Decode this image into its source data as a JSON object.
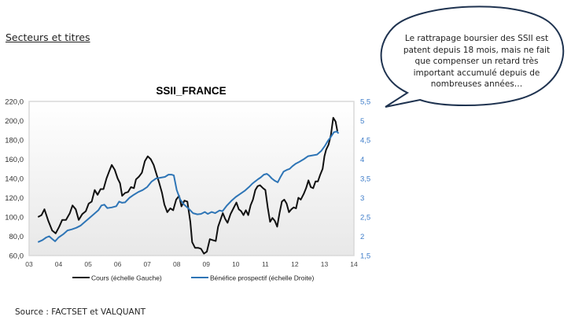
{
  "section_title": "Secteurs et titres",
  "source": "Source : FACTSET et VALQUANT",
  "callout": {
    "lines": [
      "Le rattrapage boursier des SSII est",
      "patent depuis 18 mois, mais ne fait",
      "que compenser un retard très",
      "important accumulé depuis de",
      "nombreuses années…"
    ]
  },
  "colors": {
    "cours": "#111111",
    "benefice": "#2e75b6",
    "right_axis_labels": "#3d7cc9"
  },
  "chart_data": {
    "type": "line",
    "title": "SSII_FRANCE",
    "xlabel": "",
    "ylabel": "",
    "x_ticks": [
      "03",
      "04",
      "05",
      "06",
      "07",
      "08",
      "09",
      "10",
      "11",
      "12",
      "13",
      "14"
    ],
    "x_range": [
      2003,
      2014
    ],
    "y_left": {
      "range": [
        60,
        220
      ],
      "ticks": [
        "60,0",
        "80,0",
        "100,0",
        "120,0",
        "140,0",
        "160,0",
        "180,0",
        "200,0",
        "220,0"
      ]
    },
    "y_right": {
      "range": [
        1.5,
        5.5
      ],
      "ticks": [
        "1,5",
        "2",
        "2,5",
        "3",
        "3,5",
        "4",
        "4,5",
        "5",
        "5,5"
      ]
    },
    "grid": false,
    "legend_position": "bottom",
    "series": [
      {
        "name": "Cours (échelle Gauche)",
        "axis": "left",
        "points": [
          [
            2003.3,
            100
          ],
          [
            2003.42,
            102
          ],
          [
            2003.52,
            108
          ],
          [
            2003.65,
            96
          ],
          [
            2003.78,
            86
          ],
          [
            2003.9,
            83
          ],
          [
            2004.02,
            90
          ],
          [
            2004.12,
            97
          ],
          [
            2004.25,
            97
          ],
          [
            2004.38,
            104
          ],
          [
            2004.47,
            112
          ],
          [
            2004.58,
            108
          ],
          [
            2004.68,
            97
          ],
          [
            2004.8,
            103
          ],
          [
            2004.92,
            106
          ],
          [
            2005.02,
            114
          ],
          [
            2005.12,
            116
          ],
          [
            2005.22,
            128
          ],
          [
            2005.32,
            123
          ],
          [
            2005.42,
            129
          ],
          [
            2005.52,
            129
          ],
          [
            2005.62,
            140
          ],
          [
            2005.72,
            148
          ],
          [
            2005.8,
            154
          ],
          [
            2005.9,
            149
          ],
          [
            2006.0,
            140
          ],
          [
            2006.08,
            135
          ],
          [
            2006.15,
            122
          ],
          [
            2006.25,
            125
          ],
          [
            2006.35,
            126
          ],
          [
            2006.45,
            131
          ],
          [
            2006.55,
            130
          ],
          [
            2006.62,
            139
          ],
          [
            2006.72,
            142
          ],
          [
            2006.82,
            146
          ],
          [
            2006.92,
            158
          ],
          [
            2007.02,
            163
          ],
          [
            2007.12,
            160
          ],
          [
            2007.22,
            154
          ],
          [
            2007.3,
            146
          ],
          [
            2007.4,
            136
          ],
          [
            2007.5,
            125
          ],
          [
            2007.58,
            113
          ],
          [
            2007.68,
            105
          ],
          [
            2007.78,
            109
          ],
          [
            2007.88,
            107
          ],
          [
            2007.98,
            118
          ],
          [
            2008.08,
            122
          ],
          [
            2008.16,
            111
          ],
          [
            2008.26,
            117
          ],
          [
            2008.36,
            116
          ],
          [
            2008.46,
            95
          ],
          [
            2008.52,
            74
          ],
          [
            2008.62,
            68
          ],
          [
            2008.72,
            68
          ],
          [
            2008.82,
            67
          ],
          [
            2008.92,
            62
          ],
          [
            2009.02,
            64
          ],
          [
            2009.12,
            77
          ],
          [
            2009.22,
            76
          ],
          [
            2009.32,
            75
          ],
          [
            2009.4,
            90
          ],
          [
            2009.48,
            97
          ],
          [
            2009.56,
            104
          ],
          [
            2009.64,
            98
          ],
          [
            2009.72,
            94
          ],
          [
            2009.82,
            103
          ],
          [
            2009.92,
            109
          ],
          [
            2010.02,
            115
          ],
          [
            2010.1,
            108
          ],
          [
            2010.18,
            106
          ],
          [
            2010.26,
            102
          ],
          [
            2010.34,
            107
          ],
          [
            2010.42,
            102
          ],
          [
            2010.5,
            112
          ],
          [
            2010.58,
            118
          ],
          [
            2010.66,
            128
          ],
          [
            2010.74,
            132
          ],
          [
            2010.82,
            133
          ],
          [
            2010.92,
            130
          ],
          [
            2011.0,
            128
          ],
          [
            2011.08,
            110
          ],
          [
            2011.16,
            95
          ],
          [
            2011.24,
            99
          ],
          [
            2011.32,
            96
          ],
          [
            2011.4,
            90
          ],
          [
            2011.48,
            104
          ],
          [
            2011.56,
            116
          ],
          [
            2011.64,
            118
          ],
          [
            2011.72,
            114
          ],
          [
            2011.8,
            105
          ],
          [
            2011.88,
            108
          ],
          [
            2011.96,
            110
          ],
          [
            2012.04,
            109
          ],
          [
            2012.12,
            120
          ],
          [
            2012.2,
            118
          ],
          [
            2012.3,
            124
          ],
          [
            2012.38,
            130
          ],
          [
            2012.46,
            138
          ],
          [
            2012.54,
            131
          ],
          [
            2012.62,
            130
          ],
          [
            2012.7,
            137
          ],
          [
            2012.78,
            137
          ],
          [
            2012.86,
            144
          ],
          [
            2012.94,
            150
          ],
          [
            2013.0,
            163
          ],
          [
            2013.06,
            170
          ],
          [
            2013.14,
            175
          ],
          [
            2013.22,
            185
          ],
          [
            2013.3,
            203
          ],
          [
            2013.38,
            199
          ],
          [
            2013.44,
            189
          ]
        ]
      },
      {
        "name": "Bénéfice prospectif (échelle Droite)",
        "axis": "right",
        "points": [
          [
            2003.3,
            1.85
          ],
          [
            2003.45,
            1.9
          ],
          [
            2003.58,
            1.97
          ],
          [
            2003.68,
            2.0
          ],
          [
            2003.78,
            1.93
          ],
          [
            2003.88,
            1.87
          ],
          [
            2004.0,
            1.97
          ],
          [
            2004.15,
            2.05
          ],
          [
            2004.3,
            2.15
          ],
          [
            2004.45,
            2.18
          ],
          [
            2004.6,
            2.22
          ],
          [
            2004.75,
            2.28
          ],
          [
            2004.9,
            2.38
          ],
          [
            2005.05,
            2.48
          ],
          [
            2005.2,
            2.58
          ],
          [
            2005.35,
            2.68
          ],
          [
            2005.45,
            2.8
          ],
          [
            2005.55,
            2.82
          ],
          [
            2005.65,
            2.73
          ],
          [
            2005.8,
            2.75
          ],
          [
            2005.95,
            2.78
          ],
          [
            2006.05,
            2.9
          ],
          [
            2006.15,
            2.87
          ],
          [
            2006.25,
            2.88
          ],
          [
            2006.4,
            3.0
          ],
          [
            2006.55,
            3.08
          ],
          [
            2006.7,
            3.15
          ],
          [
            2006.85,
            3.2
          ],
          [
            2007.0,
            3.28
          ],
          [
            2007.15,
            3.42
          ],
          [
            2007.3,
            3.5
          ],
          [
            2007.45,
            3.52
          ],
          [
            2007.6,
            3.54
          ],
          [
            2007.72,
            3.6
          ],
          [
            2007.82,
            3.6
          ],
          [
            2007.9,
            3.58
          ],
          [
            2008.0,
            3.2
          ],
          [
            2008.12,
            2.95
          ],
          [
            2008.25,
            2.82
          ],
          [
            2008.4,
            2.72
          ],
          [
            2008.55,
            2.6
          ],
          [
            2008.7,
            2.57
          ],
          [
            2008.82,
            2.58
          ],
          [
            2008.95,
            2.63
          ],
          [
            2009.05,
            2.58
          ],
          [
            2009.18,
            2.63
          ],
          [
            2009.3,
            2.6
          ],
          [
            2009.45,
            2.67
          ],
          [
            2009.55,
            2.65
          ],
          [
            2009.7,
            2.8
          ],
          [
            2009.85,
            2.92
          ],
          [
            2010.0,
            3.02
          ],
          [
            2010.15,
            3.1
          ],
          [
            2010.3,
            3.18
          ],
          [
            2010.45,
            3.28
          ],
          [
            2010.55,
            3.36
          ],
          [
            2010.65,
            3.42
          ],
          [
            2010.75,
            3.48
          ],
          [
            2010.85,
            3.53
          ],
          [
            2010.95,
            3.6
          ],
          [
            2011.05,
            3.62
          ],
          [
            2011.12,
            3.58
          ],
          [
            2011.22,
            3.5
          ],
          [
            2011.32,
            3.44
          ],
          [
            2011.42,
            3.4
          ],
          [
            2011.52,
            3.55
          ],
          [
            2011.62,
            3.68
          ],
          [
            2011.72,
            3.72
          ],
          [
            2011.82,
            3.75
          ],
          [
            2011.92,
            3.82
          ],
          [
            2012.02,
            3.88
          ],
          [
            2012.15,
            3.93
          ],
          [
            2012.3,
            4.0
          ],
          [
            2012.45,
            4.08
          ],
          [
            2012.6,
            4.1
          ],
          [
            2012.75,
            4.12
          ],
          [
            2012.9,
            4.22
          ],
          [
            2013.02,
            4.35
          ],
          [
            2013.12,
            4.48
          ],
          [
            2013.22,
            4.58
          ],
          [
            2013.32,
            4.7
          ],
          [
            2013.42,
            4.72
          ],
          [
            2013.48,
            4.67
          ]
        ]
      }
    ]
  }
}
